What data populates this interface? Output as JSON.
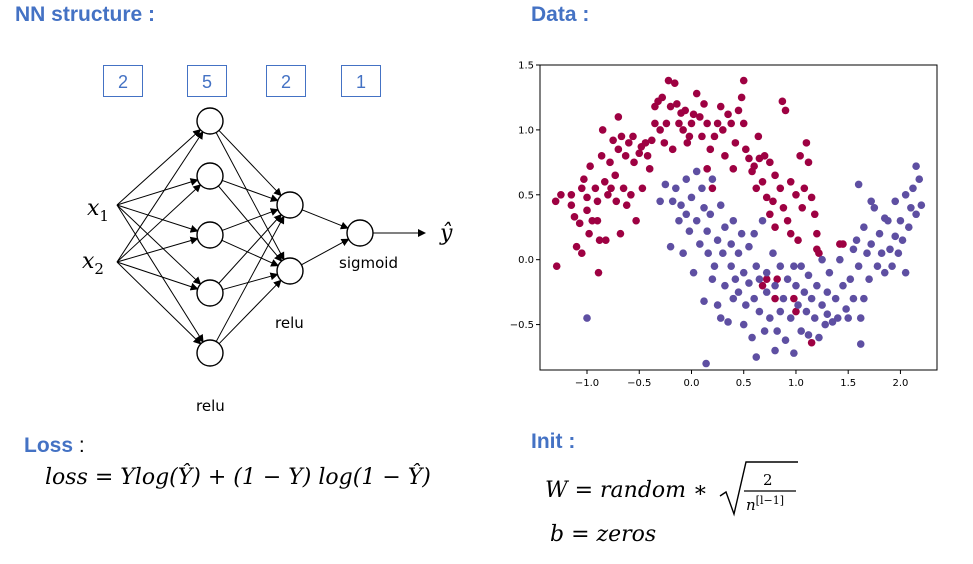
{
  "headings": {
    "nn_structure": "NN structure :",
    "data": "Data :",
    "loss": "Loss",
    "loss_colon": " :",
    "init": "Init :"
  },
  "network": {
    "layer_sizes": [
      "2",
      "5",
      "2",
      "1"
    ],
    "inputs": [
      {
        "base": "x",
        "sub": "1"
      },
      {
        "base": "x",
        "sub": "2"
      }
    ],
    "output": "ŷ",
    "hidden1_activation": "relu",
    "hidden2_activation": "relu",
    "output_activation": "sigmoid"
  },
  "formulas": {
    "loss_lhs": "loss = ",
    "loss_rhs": "Ylog(Ŷ) + (1 − Y) log(1 − Ŷ)",
    "init_w_lhs": "W = random ∗ ",
    "init_w_num": "2",
    "init_w_den": "n",
    "init_w_den_sup": "[l−1]",
    "init_b": "b =  zeros"
  },
  "colors": {
    "heading": "#4472c4",
    "class0": "#9e0142",
    "class1": "#5e4fa2"
  },
  "chart_data": {
    "type": "scatter",
    "title": "",
    "xlabel": "",
    "ylabel": "",
    "xlim": [
      -1.45,
      2.35
    ],
    "ylim": [
      -0.85,
      1.5
    ],
    "xticks": [
      -1.0,
      -0.5,
      0.0,
      0.5,
      1.0,
      1.5,
      2.0
    ],
    "yticks": [
      -0.5,
      0.0,
      0.5,
      1.0,
      1.5
    ],
    "xtick_labels": [
      "−1.0",
      "−0.5",
      "0.0",
      "0.5",
      "1.0",
      "1.5",
      "2.0"
    ],
    "ytick_labels": [
      "−0.5",
      "0.0",
      "0.5",
      "1.0",
      "1.5"
    ],
    "series": [
      {
        "color": "#9e0142",
        "points": [
          [
            -1.29,
            -0.05
          ],
          [
            -1.3,
            0.45
          ],
          [
            -1.25,
            0.5
          ],
          [
            -1.15,
            0.5
          ],
          [
            -1.15,
            0.42
          ],
          [
            -1.12,
            0.33
          ],
          [
            -1.1,
            0.1
          ],
          [
            -1.07,
            0.28
          ],
          [
            -1.05,
            0.05
          ],
          [
            -1.05,
            0.55
          ],
          [
            -1.03,
            0.62
          ],
          [
            -1.0,
            0.48
          ],
          [
            -1.0,
            0.38
          ],
          [
            -0.98,
            0.2
          ],
          [
            -0.97,
            0.72
          ],
          [
            -0.95,
            0.3
          ],
          [
            -0.92,
            0.55
          ],
          [
            -0.9,
            0.45
          ],
          [
            -0.9,
            0.3
          ],
          [
            -0.89,
            -0.1
          ],
          [
            -0.88,
            0.15
          ],
          [
            -0.86,
            0.8
          ],
          [
            -0.85,
            1.0
          ],
          [
            -0.83,
            0.6
          ],
          [
            -0.82,
            0.15
          ],
          [
            -0.8,
            0.5
          ],
          [
            -0.78,
            0.75
          ],
          [
            -0.77,
            0.55
          ],
          [
            -0.75,
            0.92
          ],
          [
            -0.73,
            0.65
          ],
          [
            -0.72,
            0.45
          ],
          [
            -0.7,
            1.1
          ],
          [
            -0.7,
            0.85
          ],
          [
            -0.68,
            0.2
          ],
          [
            -0.67,
            0.95
          ],
          [
            -0.65,
            0.55
          ],
          [
            -0.63,
            0.8
          ],
          [
            -0.62,
            0.42
          ],
          [
            -0.6,
            0.9
          ],
          [
            -0.58,
            0.5
          ],
          [
            -0.56,
            0.95
          ],
          [
            -0.55,
            0.75
          ],
          [
            -0.53,
            0.3
          ],
          [
            -0.5,
            0.82
          ],
          [
            -0.48,
            0.87
          ],
          [
            -0.47,
            0.55
          ],
          [
            -0.44,
            0.9
          ],
          [
            -0.42,
            0.8
          ],
          [
            -0.4,
            0.7
          ],
          [
            -0.38,
            0.92
          ],
          [
            -0.35,
            1.18
          ],
          [
            -0.35,
            1.05
          ],
          [
            -0.32,
            1.22
          ],
          [
            -0.3,
            1.0
          ],
          [
            -0.28,
            1.25
          ],
          [
            -0.26,
            0.9
          ],
          [
            -0.24,
            1.05
          ],
          [
            -0.22,
            1.38
          ],
          [
            -0.2,
            1.18
          ],
          [
            -0.18,
            0.85
          ],
          [
            -0.16,
            1.36
          ],
          [
            -0.14,
            1.2
          ],
          [
            -0.12,
            1.05
          ],
          [
            -0.1,
            1.13
          ],
          [
            -0.08,
            1.0
          ],
          [
            -0.06,
            1.15
          ],
          [
            -0.04,
            0.9
          ],
          [
            -0.02,
            0.95
          ],
          [
            0.0,
            1.05
          ],
          [
            0.02,
            1.12
          ],
          [
            0.05,
            1.28
          ],
          [
            0.08,
            1.1
          ],
          [
            0.1,
            0.95
          ],
          [
            0.12,
            1.2
          ],
          [
            0.15,
            1.05
          ],
          [
            0.15,
            0.7
          ],
          [
            0.18,
            0.85
          ],
          [
            0.2,
            0.55
          ],
          [
            0.22,
            0.95
          ],
          [
            0.25,
            1.05
          ],
          [
            0.28,
            1.18
          ],
          [
            0.3,
            1.0
          ],
          [
            0.32,
            0.8
          ],
          [
            0.35,
            1.12
          ],
          [
            0.38,
            1.05
          ],
          [
            0.4,
            0.7
          ],
          [
            0.42,
            0.9
          ],
          [
            0.45,
            1.15
          ],
          [
            0.48,
            1.25
          ],
          [
            0.5,
            1.38
          ],
          [
            0.5,
            1.05
          ],
          [
            0.52,
            0.85
          ],
          [
            0.55,
            0.78
          ],
          [
            0.58,
            0.68
          ],
          [
            0.6,
            0.72
          ],
          [
            0.62,
            0.55
          ],
          [
            0.64,
            0.95
          ],
          [
            0.65,
            0.78
          ],
          [
            0.68,
            0.6
          ],
          [
            0.7,
            0.8
          ],
          [
            0.72,
            0.48
          ],
          [
            0.75,
            0.75
          ],
          [
            0.75,
            0.35
          ],
          [
            0.78,
            0.45
          ],
          [
            0.8,
            0.65
          ],
          [
            0.8,
            0.25
          ],
          [
            0.82,
            -0.15
          ],
          [
            0.85,
            0.55
          ],
          [
            0.87,
            1.22
          ],
          [
            0.88,
            0.4
          ],
          [
            0.9,
            1.15
          ],
          [
            0.92,
            0.3
          ],
          [
            0.95,
            0.6
          ],
          [
            0.95,
            0.2
          ],
          [
            0.98,
            -0.3
          ],
          [
            1.0,
            0.5
          ],
          [
            1.02,
            0.15
          ],
          [
            1.04,
            0.8
          ],
          [
            1.06,
            0.4
          ],
          [
            1.08,
            0.55
          ],
          [
            1.1,
            0.9
          ],
          [
            1.12,
            0.75
          ],
          [
            1.15,
            0.48
          ],
          [
            1.15,
            -0.64
          ],
          [
            1.18,
            0.35
          ],
          [
            1.2,
            0.08
          ],
          [
            1.2,
            0.2
          ],
          [
            1.22,
            0.05
          ],
          [
            1.42,
            0.12
          ],
          [
            1.45,
            0.12
          ],
          [
            0.68,
            -0.2
          ],
          [
            0.72,
            -0.15
          ],
          [
            0.8,
            -0.3
          ],
          [
            1.0,
            -0.4
          ]
        ]
      },
      {
        "color": "#5e4fa2",
        "points": [
          [
            -1.0,
            -0.45
          ],
          [
            -0.3,
            0.45
          ],
          [
            -0.25,
            0.58
          ],
          [
            -0.2,
            0.1
          ],
          [
            -0.18,
            0.45
          ],
          [
            -0.15,
            0.55
          ],
          [
            -0.12,
            0.3
          ],
          [
            -0.1,
            0.42
          ],
          [
            -0.08,
            0.05
          ],
          [
            -0.05,
            0.35
          ],
          [
            -0.05,
            0.62
          ],
          [
            -0.02,
            0.22
          ],
          [
            0.0,
            0.48
          ],
          [
            0.02,
            -0.1
          ],
          [
            0.05,
            0.3
          ],
          [
            0.05,
            0.68
          ],
          [
            0.08,
            0.12
          ],
          [
            0.1,
            0.55
          ],
          [
            0.12,
            0.4
          ],
          [
            0.12,
            -0.32
          ],
          [
            0.14,
            -0.8
          ],
          [
            0.15,
            0.22
          ],
          [
            0.16,
            0.05
          ],
          [
            0.18,
            0.35
          ],
          [
            0.2,
            0.62
          ],
          [
            0.2,
            -0.15
          ],
          [
            0.22,
            -0.05
          ],
          [
            0.25,
            0.15
          ],
          [
            0.25,
            -0.35
          ],
          [
            0.28,
            0.42
          ],
          [
            0.28,
            -0.45
          ],
          [
            0.3,
            0.05
          ],
          [
            0.32,
            0.25
          ],
          [
            0.32,
            -0.2
          ],
          [
            0.35,
            -0.48
          ],
          [
            0.38,
            0.12
          ],
          [
            0.38,
            -0.05
          ],
          [
            0.4,
            0.3
          ],
          [
            0.4,
            -0.3
          ],
          [
            0.42,
            -0.15
          ],
          [
            0.45,
            0.05
          ],
          [
            0.45,
            -0.25
          ],
          [
            0.48,
            0.2
          ],
          [
            0.5,
            -0.5
          ],
          [
            0.5,
            -0.1
          ],
          [
            0.52,
            -0.35
          ],
          [
            0.55,
            0.1
          ],
          [
            0.55,
            -0.18
          ],
          [
            0.58,
            -0.6
          ],
          [
            0.6,
            -0.3
          ],
          [
            0.6,
            0.2
          ],
          [
            0.62,
            -0.05
          ],
          [
            0.62,
            -0.75
          ],
          [
            0.65,
            -0.4
          ],
          [
            0.65,
            -0.15
          ],
          [
            0.68,
            0.3
          ],
          [
            0.7,
            -0.55
          ],
          [
            0.72,
            -0.1
          ],
          [
            0.72,
            -0.25
          ],
          [
            0.75,
            -0.45
          ],
          [
            0.78,
            0.05
          ],
          [
            0.8,
            -0.7
          ],
          [
            0.8,
            -0.2
          ],
          [
            0.82,
            -0.55
          ],
          [
            0.85,
            -0.4
          ],
          [
            0.85,
            -0.05
          ],
          [
            0.88,
            -0.3
          ],
          [
            0.9,
            -0.62
          ],
          [
            0.92,
            -0.15
          ],
          [
            0.95,
            -0.45
          ],
          [
            0.98,
            -0.72
          ],
          [
            0.98,
            -0.05
          ],
          [
            1.0,
            -0.2
          ],
          [
            1.02,
            -0.35
          ],
          [
            1.05,
            -0.55
          ],
          [
            1.05,
            -0.05
          ],
          [
            1.08,
            -0.25
          ],
          [
            1.1,
            -0.4
          ],
          [
            1.12,
            -0.58
          ],
          [
            1.12,
            -0.12
          ],
          [
            1.15,
            -0.3
          ],
          [
            1.18,
            -0.45
          ],
          [
            1.2,
            -0.2
          ],
          [
            1.22,
            -0.6
          ],
          [
            1.25,
            -0.35
          ],
          [
            1.25,
            0.0
          ],
          [
            1.28,
            -0.5
          ],
          [
            1.3,
            -0.25
          ],
          [
            1.3,
            -0.42
          ],
          [
            1.32,
            -0.1
          ],
          [
            1.35,
            -0.48
          ],
          [
            1.38,
            -0.3
          ],
          [
            1.4,
            -0.45
          ],
          [
            1.42,
            0.0
          ],
          [
            1.45,
            -0.2
          ],
          [
            1.48,
            -0.38
          ],
          [
            1.5,
            -0.45
          ],
          [
            1.52,
            -0.15
          ],
          [
            1.55,
            -0.3
          ],
          [
            1.55,
            0.08
          ],
          [
            1.58,
            0.15
          ],
          [
            1.6,
            -0.05
          ],
          [
            1.62,
            -0.45
          ],
          [
            1.62,
            -0.65
          ],
          [
            1.65,
            0.25
          ],
          [
            1.65,
            -0.3
          ],
          [
            1.68,
            0.05
          ],
          [
            1.7,
            -0.15
          ],
          [
            1.72,
            0.12
          ],
          [
            1.75,
            0.4
          ],
          [
            1.78,
            -0.05
          ],
          [
            1.8,
            0.2
          ],
          [
            1.82,
            0.05
          ],
          [
            1.85,
            -0.1
          ],
          [
            1.88,
            0.3
          ],
          [
            1.9,
            0.08
          ],
          [
            1.92,
            -0.05
          ],
          [
            1.95,
            0.45
          ],
          [
            1.95,
            0.18
          ],
          [
            1.98,
            0.05
          ],
          [
            2.0,
            0.3
          ],
          [
            2.02,
            0.15
          ],
          [
            2.05,
            0.5
          ],
          [
            2.05,
            -0.1
          ],
          [
            2.08,
            0.25
          ],
          [
            2.1,
            0.4
          ],
          [
            2.12,
            0.55
          ],
          [
            2.15,
            0.35
          ],
          [
            2.18,
            0.62
          ],
          [
            2.2,
            0.42
          ],
          [
            2.15,
            0.72
          ],
          [
            1.6,
            0.58
          ],
          [
            1.85,
            0.32
          ],
          [
            1.72,
            0.45
          ]
        ]
      }
    ]
  }
}
